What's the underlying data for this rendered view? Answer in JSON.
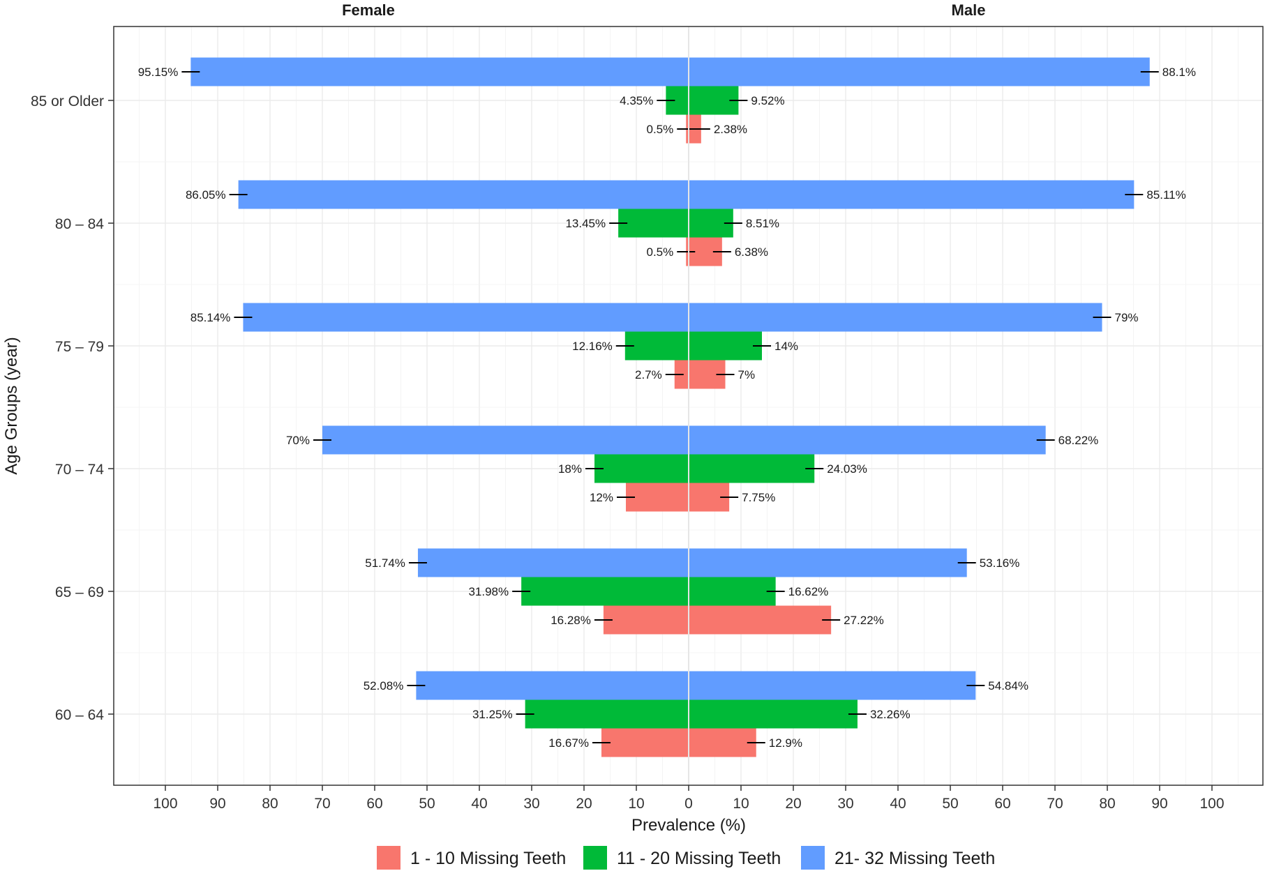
{
  "chart_data": {
    "type": "bar",
    "orientation": "horizontal",
    "layout": "diverging",
    "facets": [
      "Female",
      "Male"
    ],
    "categories": [
      "60 – 64",
      "65 – 69",
      "70 – 74",
      "75 – 79",
      "80 – 84",
      "85 or Older"
    ],
    "xlabel": "Prevalence (%)",
    "ylabel": "Age Groups (year)",
    "xlim": [
      -110,
      110
    ],
    "xticks": [
      -100,
      -90,
      -80,
      -70,
      -60,
      -50,
      -40,
      -30,
      -20,
      -10,
      0,
      10,
      20,
      30,
      40,
      50,
      60,
      70,
      80,
      90,
      100
    ],
    "xtick_labels": [
      "100",
      "90",
      "80",
      "70",
      "60",
      "50",
      "40",
      "30",
      "20",
      "10",
      "0",
      "10",
      "20",
      "30",
      "40",
      "50",
      "60",
      "70",
      "80",
      "90",
      "100"
    ],
    "grid": true,
    "legend_position": "bottom",
    "series": [
      {
        "name": "1 - 10 Missing Teeth",
        "color": "#F8766D",
        "female": [
          16.67,
          16.28,
          12,
          2.7,
          0.5,
          0.5
        ],
        "male": [
          12.9,
          27.22,
          7.75,
          7,
          6.38,
          2.38
        ],
        "female_labels": [
          "16.67%",
          "16.28%",
          "12%",
          "2.7%",
          "0.5%",
          "0.5%"
        ],
        "male_labels": [
          "12.9%",
          "27.22%",
          "7.75%",
          "7%",
          "6.38%",
          "2.38%"
        ]
      },
      {
        "name": "11 - 20 Missing Teeth",
        "color": "#00BA38",
        "female": [
          31.25,
          31.98,
          18,
          12.16,
          13.45,
          4.35
        ],
        "male": [
          32.26,
          16.62,
          24.03,
          14,
          8.51,
          9.52
        ],
        "female_labels": [
          "31.25%",
          "31.98%",
          "18%",
          "12.16%",
          "13.45%",
          "4.35%"
        ],
        "male_labels": [
          "32.26%",
          "16.62%",
          "24.03%",
          "14%",
          "8.51%",
          "9.52%"
        ]
      },
      {
        "name": "21- 32 Missing Teeth",
        "color": "#619CFF",
        "female": [
          52.08,
          51.74,
          70,
          85.14,
          86.05,
          95.15
        ],
        "male": [
          54.84,
          53.16,
          68.22,
          79,
          85.11,
          88.1
        ],
        "female_labels": [
          "52.08%",
          "51.74%",
          "70%",
          "85.14%",
          "86.05%",
          "95.15%"
        ],
        "male_labels": [
          "54.84%",
          "53.16%",
          "68.22%",
          "79%",
          "85.11%",
          "88.1%"
        ]
      }
    ]
  }
}
